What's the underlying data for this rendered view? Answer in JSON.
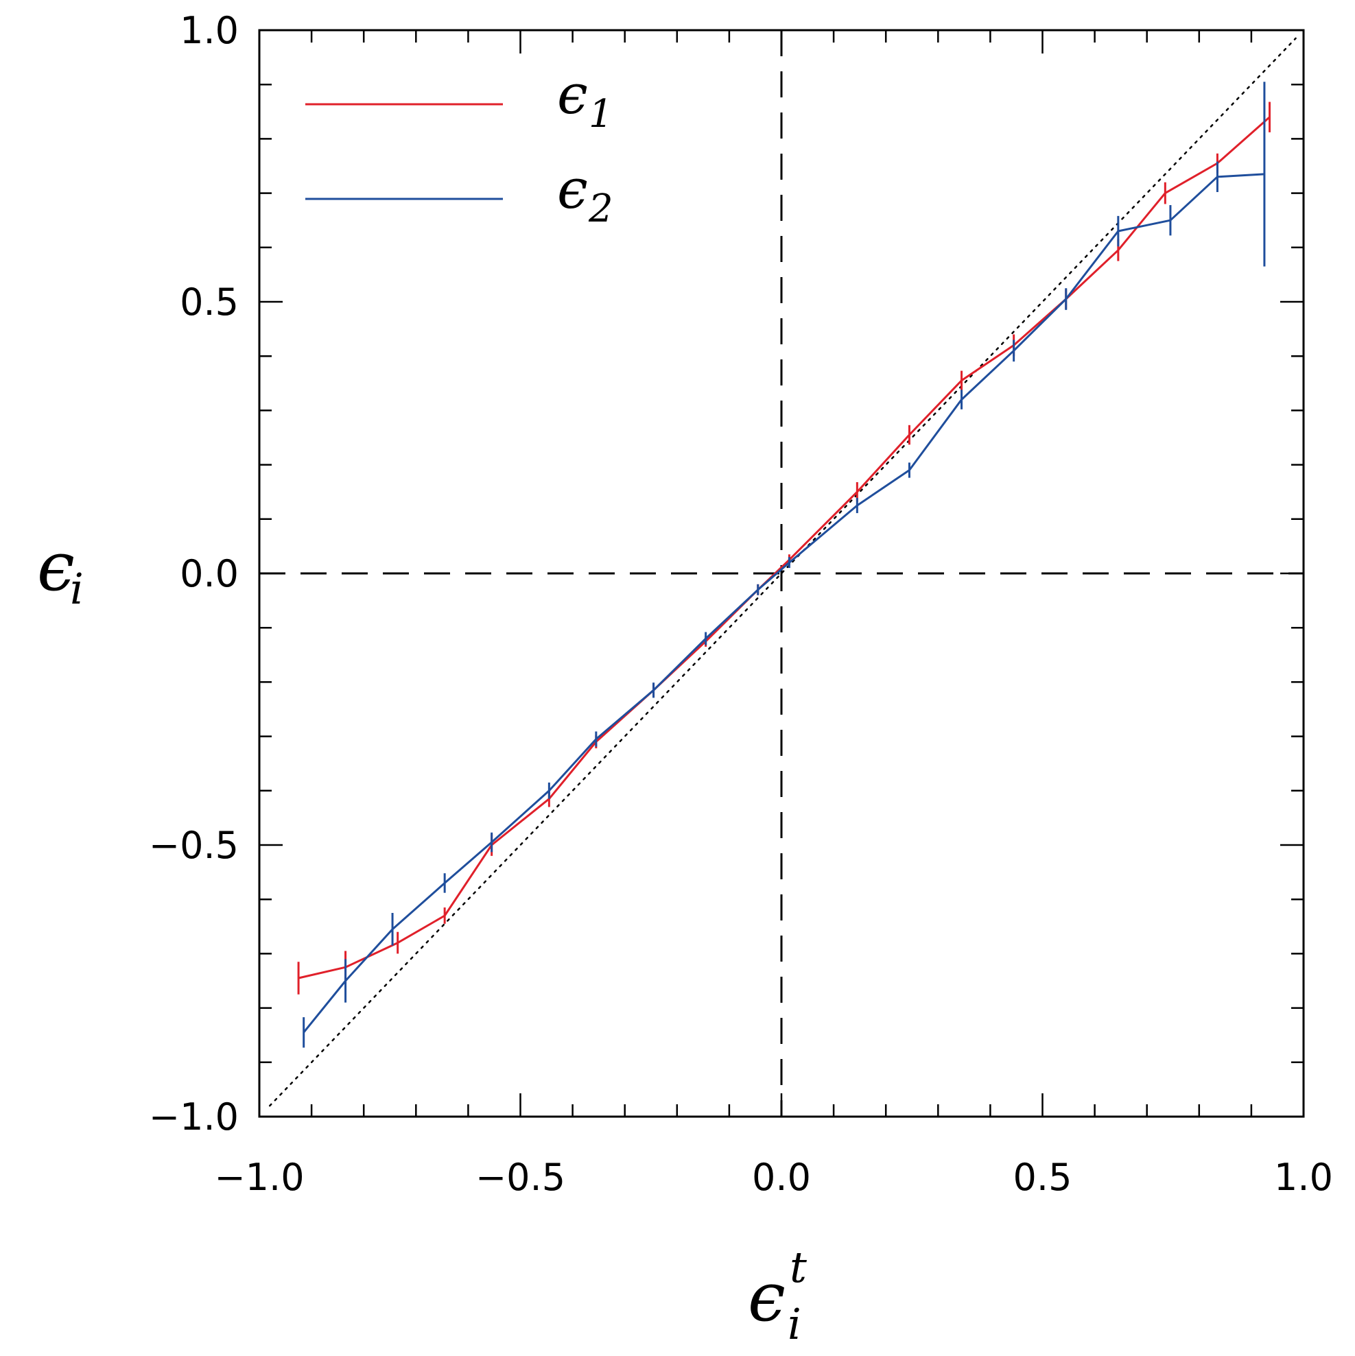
{
  "chart_data": {
    "type": "line",
    "xlabel": "ϵ",
    "xlabel_superscript": "t",
    "xlabel_subscript": "i",
    "ylabel": "ϵ",
    "ylabel_subscript": "i",
    "xlim": [
      -1.0,
      1.0
    ],
    "ylim": [
      -1.0,
      1.0
    ],
    "x_ticks": [
      "−1.0",
      "−0.5",
      "0.0",
      "0.5",
      "1.0"
    ],
    "y_ticks": [
      "−1.0",
      "−0.5",
      "0.0",
      "0.5",
      "1.0"
    ],
    "grid": false,
    "legend_position": "top-left",
    "reference_lines": {
      "diagonal_dotted": true,
      "zero_dashed_x": true,
      "zero_dashed_y": true
    },
    "series": [
      {
        "name": "ϵ",
        "name_subscript": "1",
        "color": "#e0202a",
        "x": [
          -0.925,
          -0.835,
          -0.735,
          -0.645,
          -0.555,
          -0.445,
          -0.355,
          -0.245,
          -0.145,
          -0.045,
          0.015,
          0.145,
          0.245,
          0.345,
          0.445,
          0.545,
          0.645,
          0.735,
          0.835,
          0.935
        ],
        "y": [
          -0.745,
          -0.725,
          -0.68,
          -0.63,
          -0.5,
          -0.415,
          -0.31,
          -0.215,
          -0.125,
          -0.03,
          0.025,
          0.15,
          0.255,
          0.355,
          0.42,
          0.505,
          0.595,
          0.7,
          0.755,
          0.84
        ],
        "err": [
          0.03,
          0.03,
          0.02,
          0.015,
          0.02,
          0.015,
          0.012,
          0.012,
          0.01,
          0.01,
          0.01,
          0.018,
          0.018,
          0.018,
          0.02,
          0.018,
          0.02,
          0.02,
          0.018,
          0.028
        ]
      },
      {
        "name": "ϵ",
        "name_subscript": "2",
        "color": "#1f4e9c",
        "x": [
          -0.915,
          -0.835,
          -0.745,
          -0.645,
          -0.555,
          -0.445,
          -0.355,
          -0.245,
          -0.145,
          -0.045,
          0.015,
          0.145,
          0.245,
          0.345,
          0.445,
          0.545,
          0.645,
          0.745,
          0.835,
          0.925
        ],
        "y": [
          -0.845,
          -0.75,
          -0.655,
          -0.57,
          -0.495,
          -0.4,
          -0.305,
          -0.215,
          -0.12,
          -0.03,
          0.02,
          0.125,
          0.19,
          0.32,
          0.41,
          0.505,
          0.63,
          0.65,
          0.73,
          0.735
        ],
        "err": [
          0.028,
          0.04,
          0.03,
          0.018,
          0.018,
          0.015,
          0.014,
          0.014,
          0.012,
          0.01,
          0.01,
          0.014,
          0.014,
          0.018,
          0.02,
          0.02,
          0.028,
          0.028,
          0.028,
          0.17
        ]
      }
    ]
  }
}
